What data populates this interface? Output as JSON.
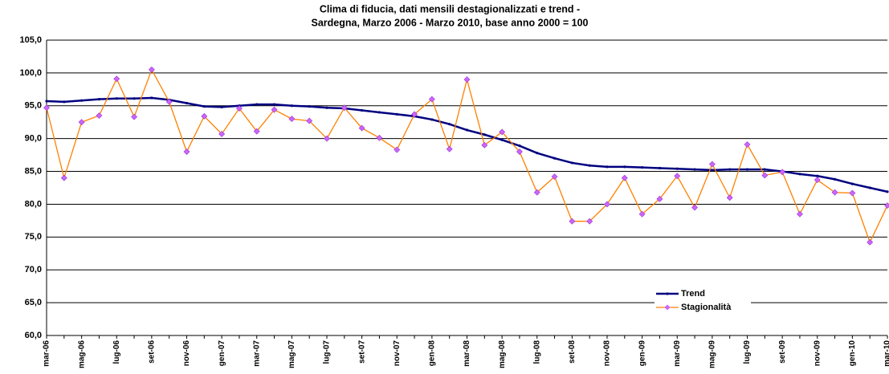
{
  "chart_data": {
    "type": "line",
    "title": [
      "Clima di fiducia, dati mensili destagionalizzati e trend -",
      "Sardegna, Marzo 2006 - Marzo 2010, base anno 2000 = 100"
    ],
    "categories": [
      "mar-06",
      null,
      "mag-06",
      null,
      "lug-06",
      null,
      "set-06",
      null,
      "nov-06",
      null,
      "gen-07",
      null,
      "mar-07",
      null,
      "mag-07",
      null,
      "lug-07",
      null,
      "set-07",
      null,
      "nov-07",
      null,
      "gen-08",
      null,
      "mar-08",
      null,
      "mag-08",
      null,
      "lug-08",
      null,
      "set-08",
      null,
      "nov-08",
      null,
      "gen-09",
      null,
      "mar-09",
      null,
      "mag-09",
      null,
      "lug-09",
      null,
      "set-09",
      null,
      "nov-09",
      null,
      "gen-10",
      null,
      "mar-10"
    ],
    "series": [
      {
        "name": "Trend",
        "color": "#000080",
        "values": [
          95.7,
          95.6,
          95.8,
          96.0,
          96.1,
          96.1,
          96.2,
          95.9,
          95.4,
          94.9,
          94.8,
          95.0,
          95.2,
          95.2,
          95.0,
          94.9,
          94.7,
          94.6,
          94.3,
          94.0,
          93.7,
          93.4,
          92.9,
          92.2,
          91.3,
          90.6,
          89.8,
          88.9,
          87.8,
          87.0,
          86.3,
          85.9,
          85.7,
          85.7,
          85.6,
          85.5,
          85.4,
          85.3,
          85.2,
          85.3,
          85.3,
          85.3,
          85.0,
          84.6,
          84.3,
          83.8,
          83.1,
          82.5,
          81.9
        ]
      },
      {
        "name": "Stagionalità",
        "color": "#ff8000",
        "marker_color": "#cc66ff",
        "values": [
          94.7,
          84.0,
          92.5,
          93.5,
          99.1,
          93.3,
          100.5,
          95.6,
          88.0,
          93.4,
          90.7,
          94.6,
          91.1,
          94.4,
          93.0,
          92.7,
          90.0,
          94.7,
          91.6,
          90.1,
          88.3,
          93.7,
          96.0,
          88.4,
          99.0,
          89.0,
          91.0,
          88.0,
          81.8,
          84.2,
          77.4,
          77.4,
          80.0,
          84.0,
          78.5,
          80.8,
          84.3,
          79.5,
          86.1,
          81.0,
          89.1,
          84.4,
          84.9,
          78.5,
          83.7,
          81.8,
          81.7,
          74.2,
          79.8
        ]
      }
    ],
    "ylim": [
      60,
      105
    ],
    "yticks": [
      {
        "value": 60,
        "label": "60,0"
      },
      {
        "value": 65,
        "label": "65,0"
      },
      {
        "value": 70,
        "label": "70,0"
      },
      {
        "value": 75,
        "label": "75,0"
      },
      {
        "value": 80,
        "label": "80,0"
      },
      {
        "value": 85,
        "label": "85,0"
      },
      {
        "value": 90,
        "label": "90,0"
      },
      {
        "value": 95,
        "label": "95,0"
      },
      {
        "value": 100,
        "label": "100,0"
      },
      {
        "value": 105,
        "label": "105,0"
      }
    ],
    "grid": true,
    "legend": "right"
  }
}
